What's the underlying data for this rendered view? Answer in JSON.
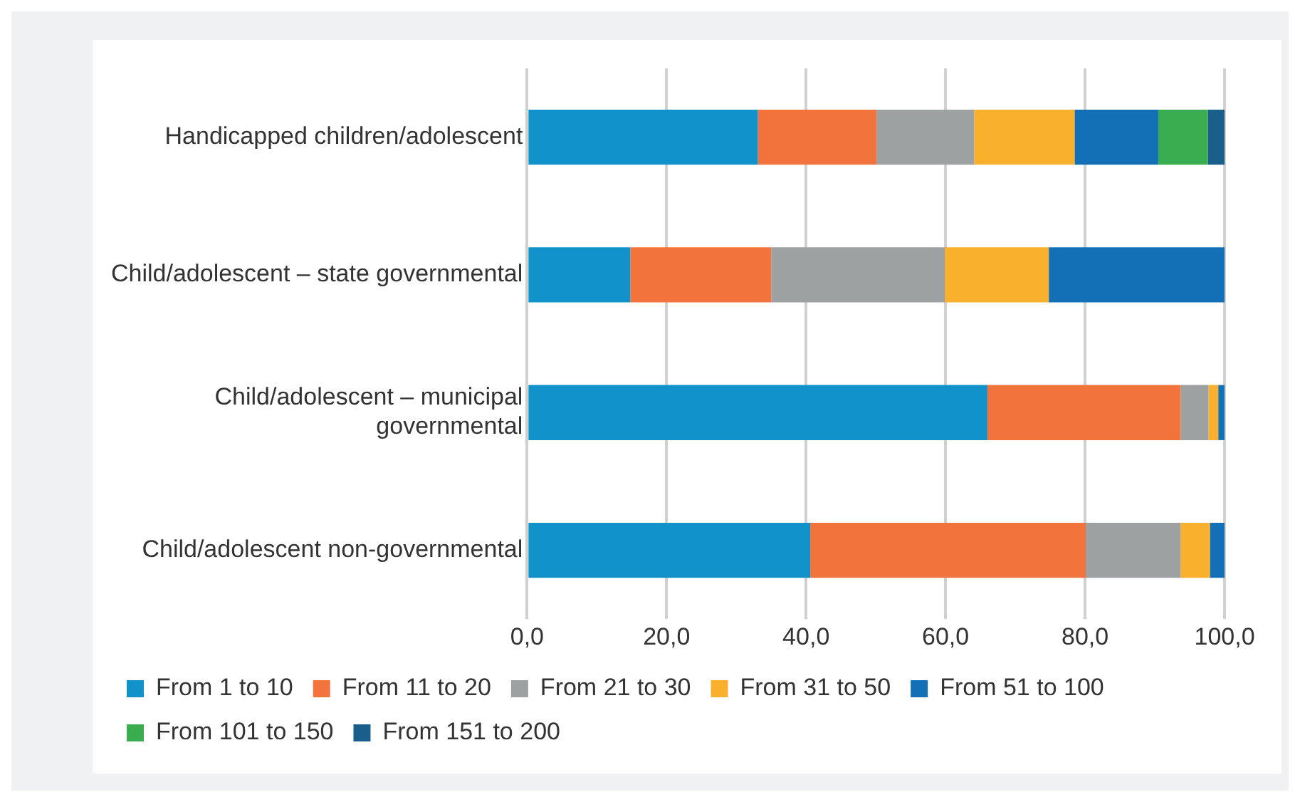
{
  "chart_data": {
    "type": "bar",
    "orientation": "horizontal",
    "stacked": true,
    "categories": [
      "Handicapped children/adolescent",
      "Child/adolescent – state governmental",
      "Child/adolescent – municipal governmental",
      "Child/adolescent non-governmental"
    ],
    "series": [
      {
        "name": "From 1 to 10",
        "color": "#1192cb",
        "values": [
          33.1,
          14.8,
          66.0,
          40.6
        ]
      },
      {
        "name": "From 11 to 20",
        "color": "#f3733c",
        "values": [
          17.0,
          20.2,
          27.7,
          39.5
        ]
      },
      {
        "name": "From 21 to 30",
        "color": "#9da1a2",
        "values": [
          14.0,
          24.9,
          4.0,
          13.6
        ]
      },
      {
        "name": "From 31 to 50",
        "color": "#f9b02d",
        "values": [
          14.4,
          14.9,
          1.4,
          4.2
        ]
      },
      {
        "name": "From 51 to 100",
        "color": "#136fb6",
        "values": [
          12.0,
          25.2,
          0.9,
          2.1
        ]
      },
      {
        "name": "From 101 to 150",
        "color": "#3aad50",
        "values": [
          7.1,
          null,
          null,
          null
        ]
      },
      {
        "name": "From 151 to 200",
        "color": "#1a5e8c",
        "values": [
          2.4,
          null,
          null,
          null
        ]
      }
    ],
    "xlim": [
      0,
      100
    ],
    "xticks": [
      {
        "value": 0,
        "label": "0,0"
      },
      {
        "value": 20,
        "label": "20,0"
      },
      {
        "value": 40,
        "label": "40,0"
      },
      {
        "value": 60,
        "label": "60,0"
      },
      {
        "value": 80,
        "label": "80,0"
      },
      {
        "value": 100,
        "label": "100,0"
      }
    ],
    "grid": "x",
    "legend": "bottom"
  }
}
